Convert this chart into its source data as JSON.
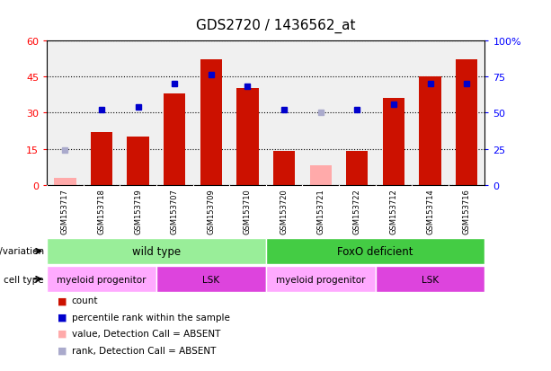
{
  "title": "GDS2720 / 1436562_at",
  "samples": [
    "GSM153717",
    "GSM153718",
    "GSM153719",
    "GSM153707",
    "GSM153709",
    "GSM153710",
    "GSM153720",
    "GSM153721",
    "GSM153722",
    "GSM153712",
    "GSM153714",
    "GSM153716"
  ],
  "bar_heights": [
    3,
    22,
    20,
    38,
    52,
    40,
    14,
    8,
    14,
    36,
    45,
    52
  ],
  "bar_absent": [
    true,
    false,
    false,
    false,
    false,
    false,
    false,
    true,
    false,
    false,
    false,
    false
  ],
  "percentile_ranks": [
    24,
    52,
    54,
    70,
    76,
    68,
    52,
    50,
    52,
    56,
    70,
    70
  ],
  "rank_absent": [
    true,
    false,
    false,
    false,
    false,
    false,
    false,
    true,
    false,
    false,
    false,
    false
  ],
  "ylim_left": [
    0,
    60
  ],
  "ylim_right": [
    0,
    100
  ],
  "yticks_left": [
    0,
    15,
    30,
    45,
    60
  ],
  "yticks_right": [
    0,
    25,
    50,
    75,
    100
  ],
  "ytick_labels_right": [
    "0",
    "25",
    "50",
    "75",
    "100%"
  ],
  "bar_color_present": "#cc1100",
  "bar_color_absent": "#ffaaaa",
  "dot_color_present": "#0000cc",
  "dot_color_absent": "#aaaacc",
  "genotype_groups": [
    {
      "label": "wild type",
      "start": 0,
      "end": 6,
      "color": "#99ee99"
    },
    {
      "label": "FoxO deficient",
      "start": 6,
      "end": 12,
      "color": "#44cc44"
    }
  ],
  "cell_type_groups": [
    {
      "label": "myeloid progenitor",
      "start": 0,
      "end": 3,
      "color": "#ffaaff"
    },
    {
      "label": "LSK",
      "start": 3,
      "end": 6,
      "color": "#dd44dd"
    },
    {
      "label": "myeloid progenitor",
      "start": 6,
      "end": 9,
      "color": "#ffaaff"
    },
    {
      "label": "LSK",
      "start": 9,
      "end": 12,
      "color": "#dd44dd"
    }
  ],
  "legend_items": [
    {
      "label": "count",
      "color": "#cc1100"
    },
    {
      "label": "percentile rank within the sample",
      "color": "#0000cc"
    },
    {
      "label": "value, Detection Call = ABSENT",
      "color": "#ffaaaa"
    },
    {
      "label": "rank, Detection Call = ABSENT",
      "color": "#aaaacc"
    }
  ],
  "title_fontsize": 11,
  "xtick_bg": "#cccccc"
}
